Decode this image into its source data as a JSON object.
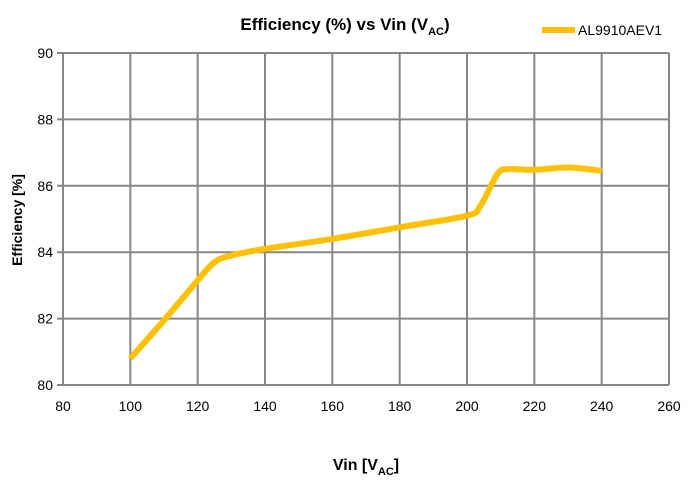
{
  "chart_data": {
    "type": "line",
    "title_main": "Efficiency (%) vs Vin (V",
    "title_sub": "AC",
    "title_end": ")",
    "xlabel_main": "Vin [V",
    "xlabel_sub": "AC",
    "xlabel_end": "]",
    "ylabel": "Efficiency [%]",
    "xlim": [
      80,
      260
    ],
    "ylim": [
      80,
      90
    ],
    "x_ticks": [
      80,
      100,
      120,
      140,
      160,
      180,
      200,
      220,
      240,
      260
    ],
    "y_ticks": [
      80,
      82,
      84,
      86,
      88,
      90
    ],
    "grid": true,
    "legend_position": "top-right",
    "series": [
      {
        "name": "AL9910AEV1",
        "color": "#FFC000",
        "x": [
          100,
          110,
          120,
          125,
          130,
          140,
          160,
          180,
          200,
          204,
          209,
          212,
          220,
          230,
          240
        ],
        "y": [
          80.8,
          81.95,
          83.15,
          83.7,
          83.9,
          84.1,
          84.4,
          84.75,
          85.1,
          85.4,
          86.35,
          86.5,
          86.48,
          86.55,
          86.45
        ]
      }
    ]
  }
}
